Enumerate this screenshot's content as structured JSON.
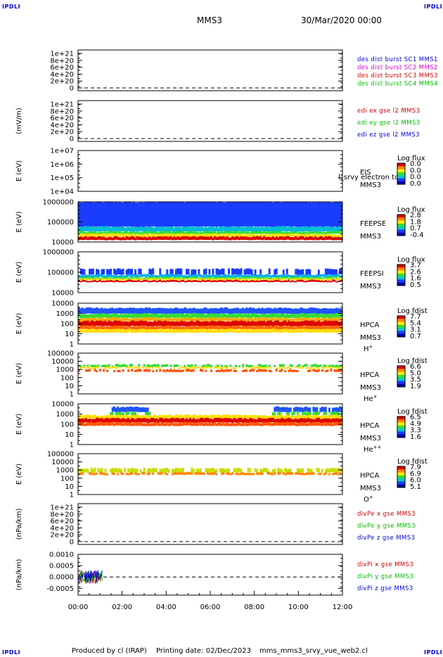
{
  "header": {
    "corner_tl": "IPDLI",
    "corner_tr": "IPDLI",
    "corner_bl": "IPDLI",
    "corner_br": "IPDLI",
    "mission": "MMS3",
    "date": "30/Mar/2020 00:00"
  },
  "footer": {
    "produced": "Produced by cl (IRAP)",
    "printing": "Printing date: 02/Dec/2023",
    "file": "mms_mms3_srvy_vue_web2.cl"
  },
  "colors": {
    "blue": "#0000cc",
    "magenta": "#cc00cc",
    "red": "#cc0000",
    "green": "#00bb00"
  },
  "chart_data": {
    "type": "multi-panel time series",
    "time_axis": {
      "ticks": [
        "00:00",
        "02:00",
        "04:00",
        "06:00",
        "08:00",
        "10:00",
        "12:00"
      ],
      "range_hours": [
        0,
        12
      ]
    },
    "panels": [
      {
        "id": "des",
        "type": "line",
        "ylabel": "",
        "yticks": [
          "1e+21",
          "8e+20",
          "6e+20",
          "4e+20",
          "2e+20",
          "0"
        ],
        "dashed_zero": true,
        "legend": [
          {
            "text": "des dist burst SC1 MMS1",
            "color": "#0000cc"
          },
          {
            "text": "des dist burst SC2 MMS2",
            "color": "#cc00cc"
          },
          {
            "text": "des dist burst SC3 MMS3",
            "color": "#cc0000"
          },
          {
            "text": "des dist burst SC4 MMS4",
            "color": "#00bb00"
          }
        ]
      },
      {
        "id": "edi",
        "type": "line",
        "ylabel": "(mV/m)",
        "yticks": [
          "1e+21",
          "8e+20",
          "6e+20",
          "4e+20",
          "2e+20",
          "0"
        ],
        "dashed_zero": true,
        "legend": [
          {
            "text": "edi ex gse l2 MMS3",
            "color": "#cc0000"
          },
          {
            "text": "edi ey gse l2 MMS3",
            "color": "#00bb00"
          },
          {
            "text": "edi ez gse l2 MMS3",
            "color": "#0000cc"
          }
        ]
      },
      {
        "id": "eis",
        "type": "heatmap",
        "ylabel": "E (eV)",
        "yticks": [
          "1e+07",
          "1e+06",
          "1e+05",
          "1e+04"
        ],
        "instrument": [
          "EIS",
          "MMS3"
        ],
        "overlay": "l_srvy electron tof",
        "cbar_title": "Log flux",
        "cbar_ticks": [
          "0.0",
          "0.0",
          "0.0",
          "0.0"
        ]
      },
      {
        "id": "feepse",
        "type": "heatmap",
        "ylabel": "E (eV)",
        "yticks": [
          "1000000",
          "100000",
          "10000"
        ],
        "instrument": [
          "FEEPSE",
          "MMS3"
        ],
        "cbar_title": "Log flux",
        "cbar_ticks": [
          "2.8",
          "1.8",
          "0.7",
          "-0.4"
        ],
        "bands": [
          {
            "frac": [
              0.0,
              0.62
            ],
            "color": "#1a3cff"
          },
          {
            "frac": [
              0.62,
              0.74
            ],
            "color": "#00bcd4"
          },
          {
            "frac": [
              0.74,
              0.8
            ],
            "color": "#33dd33"
          },
          {
            "frac": [
              0.8,
              0.87
            ],
            "color": "#ffdd00"
          },
          {
            "frac": [
              0.87,
              0.95
            ],
            "color": "#dd0000"
          }
        ]
      },
      {
        "id": "feepsi",
        "type": "heatmap",
        "ylabel": "E (eV)",
        "yticks": [
          "1000000",
          "100000",
          "10000"
        ],
        "instrument": [
          "FEEPSI",
          "MMS3"
        ],
        "cbar_title": "Log flux",
        "cbar_ticks": [
          "3.7",
          "2.6",
          "1.6",
          "0.5"
        ],
        "bands": [
          {
            "frac": [
              0.42,
              0.56
            ],
            "color": "#1a3cff"
          },
          {
            "frac": [
              0.56,
              0.62
            ],
            "color": "#00aaff"
          },
          {
            "frac": [
              0.62,
              0.66
            ],
            "color": "#33dd33"
          },
          {
            "frac": [
              0.66,
              0.7
            ],
            "color": "#ffdd00"
          },
          {
            "frac": [
              0.7,
              0.74
            ],
            "color": "#dd0000"
          }
        ]
      },
      {
        "id": "hpca_h",
        "type": "heatmap",
        "ylabel": "E (eV)",
        "yticks": [
          "10000",
          "1000",
          "100",
          "10",
          "1"
        ],
        "instrument": [
          "HPCA",
          "MMS3"
        ],
        "species": "H+",
        "cbar_title": "Log fdist",
        "cbar_ticks": [
          "7.7",
          "5.4",
          "3.1",
          "0.7"
        ],
        "bands": [
          {
            "frac": [
              0.12,
              0.26
            ],
            "color": "#2255ff"
          },
          {
            "frac": [
              0.26,
              0.36
            ],
            "color": "#33dd33"
          },
          {
            "frac": [
              0.36,
              0.44
            ],
            "color": "#ffaa00"
          },
          {
            "frac": [
              0.44,
              0.56
            ],
            "color": "#dd0000"
          },
          {
            "frac": [
              0.56,
              0.64
            ],
            "color": "#ff6600"
          },
          {
            "frac": [
              0.64,
              0.72
            ],
            "color": "#ffdd00"
          }
        ]
      },
      {
        "id": "hpca_he",
        "type": "heatmap",
        "ylabel": "E (eV)",
        "yticks": [
          "100000",
          "10000",
          "1000",
          "100",
          "10",
          "1"
        ],
        "instrument": [
          "HPCA",
          "MMS3"
        ],
        "species": "He+",
        "cbar_title": "Log fdist",
        "cbar_ticks": [
          "6.6",
          "5.0",
          "3.5",
          "1.9"
        ],
        "bands": [
          {
            "frac": [
              0.28,
              0.34
            ],
            "color": "#33dd33"
          },
          {
            "frac": [
              0.34,
              0.38
            ],
            "color": "#ffdd00"
          },
          {
            "frac": [
              0.4,
              0.46
            ],
            "color": "#ff5500"
          }
        ]
      },
      {
        "id": "hpca_hepp",
        "type": "heatmap",
        "ylabel": "E (eV)",
        "yticks": [
          "10000",
          "1000",
          "100",
          "10",
          "1"
        ],
        "instrument": [
          "HPCA",
          "MMS3"
        ],
        "species": "He++",
        "cbar_title": "Log fdist",
        "cbar_ticks": [
          "6.5",
          "4.9",
          "3.3",
          "1.6"
        ],
        "bands": [
          {
            "frac": [
              0.08,
              0.2
            ],
            "color": "#2255ff"
          },
          {
            "frac": [
              0.2,
              0.28
            ],
            "color": "#33dd33"
          },
          {
            "frac": [
              0.28,
              0.36
            ],
            "color": "#ffdd00"
          },
          {
            "frac": [
              0.36,
              0.46
            ],
            "color": "#dd0000"
          },
          {
            "frac": [
              0.46,
              0.54
            ],
            "color": "#ff5500"
          }
        ]
      },
      {
        "id": "hpca_o",
        "type": "heatmap",
        "ylabel": "E (eV)",
        "yticks": [
          "100000",
          "10000",
          "1000",
          "100",
          "10",
          "1"
        ],
        "instrument": [
          "HPCA",
          "MMS3"
        ],
        "species": "O+",
        "cbar_title": "Log fdist",
        "cbar_ticks": [
          "7.9",
          "6.9",
          "6.0",
          "5.1"
        ],
        "bands": [
          {
            "frac": [
              0.36,
              0.46
            ],
            "color": "#ccdd00"
          },
          {
            "frac": [
              0.46,
              0.52
            ],
            "color": "#ff8800"
          }
        ]
      },
      {
        "id": "divpe",
        "type": "line",
        "ylabel": "(nPa/km)",
        "yticks": [
          "1e+21",
          "8e+20",
          "6e+20",
          "4e+20",
          "2e+20",
          "0"
        ],
        "dashed_zero": true,
        "legend": [
          {
            "text": "divPe x gse MMS3",
            "color": "#cc0000"
          },
          {
            "text": "divPe y gse MMS3",
            "color": "#00bb00"
          },
          {
            "text": "divPe z gse MMS3",
            "color": "#0000cc"
          }
        ]
      },
      {
        "id": "divpi",
        "type": "line",
        "ylabel": "(nPa/km)",
        "yticks": [
          "0.0010",
          "0.0005",
          "0.0000",
          "-0.0005"
        ],
        "ylim": [
          -0.0008,
          0.001
        ],
        "dashed_zero": true,
        "data_span_hours": [
          0.0,
          1.1
        ],
        "legend": [
          {
            "text": "divPi x gse MMS3",
            "color": "#cc0000"
          },
          {
            "text": "divPi y gse MMS3",
            "color": "#00bb00"
          },
          {
            "text": "divPi z gse MMS3",
            "color": "#0000cc"
          }
        ]
      }
    ]
  }
}
